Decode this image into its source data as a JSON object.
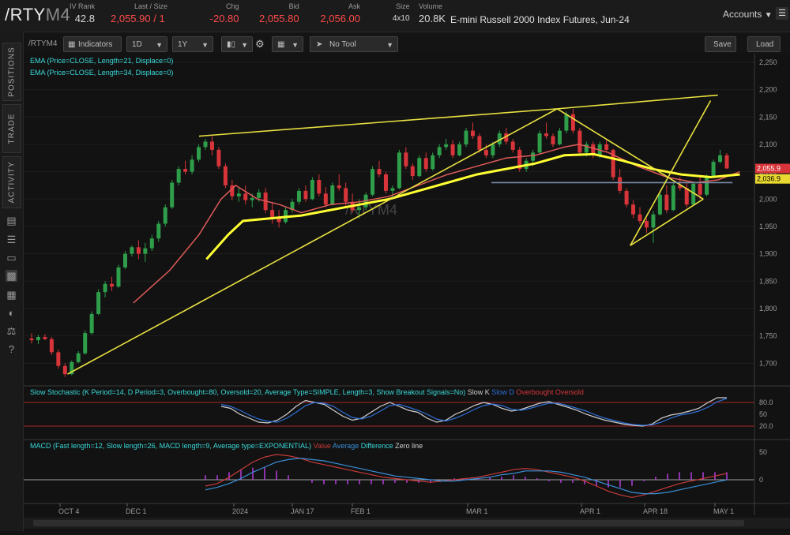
{
  "header": {
    "symbol": "/RTY",
    "symbol_suffix": "M4",
    "quotes": [
      {
        "label": "IV Rank",
        "value": "42.8",
        "color": "normal"
      },
      {
        "label": "Last / Size",
        "value": "2,055.90 / 1",
        "color": "red"
      },
      {
        "label": "Chg",
        "value": "-20.80",
        "color": "red"
      },
      {
        "label": "Bid",
        "value": "2,055.80",
        "color": "red"
      },
      {
        "label": "Ask",
        "value": "2,056.00",
        "color": "red"
      },
      {
        "label": "Size",
        "value": "4x10",
        "color": "normal"
      },
      {
        "label": "Volume",
        "value": "20.8K",
        "color": "normal"
      }
    ],
    "description": "E-mini Russell 2000 Index Futures, Jun-24",
    "accounts_label": "Accounts"
  },
  "sidebar": {
    "tabs": [
      "POSITIONS",
      "TRADE",
      "ACTIVITY"
    ],
    "icons": [
      "document-icon",
      "list-icon",
      "tv-icon",
      "chart-icon",
      "grid-icon",
      "gauge-icon",
      "scale-icon",
      "help-icon"
    ]
  },
  "toolbar": {
    "symbol": "/RTYM4",
    "indicators_label": "Indicators",
    "interval": "1D",
    "range": "1Y",
    "tool": "No Tool",
    "save_label": "Save",
    "load_label": "Load"
  },
  "studies": {
    "ema1": "EMA (Price=CLOSE, Length=21, Displace=0)",
    "ema2": "EMA (Price=CLOSE, Length=34, Displace=0)",
    "stoch": "Slow Stochastic (K Period=14, D Period=3, Overbought=80, Oversold=20, Average Type=SIMPLE, Length=3, Show Breakout Signals=No)",
    "stoch_legend": [
      "Slow K",
      "Slow D",
      "Overbought",
      "Oversold"
    ],
    "macd": "MACD (Fast length=12, Slow length=26, MACD length=9, Average type=EXPONENTIAL)",
    "macd_legend": [
      "Value",
      "Average",
      "Difference",
      "Zero line"
    ]
  },
  "watermark": "/RTYM4",
  "price_axis": {
    "ticks": [
      "2,250",
      "2,200",
      "2,150",
      "2,100",
      "2,050",
      "2,000",
      "1,950",
      "1,900",
      "1,850",
      "1,800",
      "1,750",
      "1,700"
    ],
    "last_price_label": "2,055.9",
    "ema_label": "2,036.9"
  },
  "stoch_axis": {
    "ticks": [
      "80.0",
      "50",
      "20.0"
    ]
  },
  "macd_axis": {
    "ticks": [
      "50",
      "0"
    ]
  },
  "date_axis": [
    "OCT 4",
    "DEC 1",
    "2024",
    "JAN 17",
    "FEB 1",
    "MAR 1",
    "APR 1",
    "APR 18",
    "MAY 1"
  ],
  "colors": {
    "up": "#2e9e4a",
    "down": "#d8353a",
    "ema21": "#e05a5a",
    "ema34": "#ffff33",
    "trendline": "#e8e040",
    "stoch_k": "#cfcfcf",
    "stoch_d": "#2f6fd8",
    "macd_value": "#c83a3a",
    "macd_avg": "#3a8fd8",
    "macd_hist": "#b53ee0"
  },
  "chart_data": {
    "type": "candlestick",
    "ylim": [
      1660,
      2260
    ],
    "candles": [
      [
        1745,
        1755,
        1736,
        1742
      ],
      [
        1742,
        1752,
        1735,
        1748
      ],
      [
        1748,
        1753,
        1742,
        1744
      ],
      [
        1744,
        1748,
        1715,
        1720
      ],
      [
        1720,
        1725,
        1690,
        1695
      ],
      [
        1695,
        1700,
        1675,
        1680
      ],
      [
        1680,
        1705,
        1678,
        1702
      ],
      [
        1702,
        1722,
        1700,
        1718
      ],
      [
        1718,
        1760,
        1715,
        1755
      ],
      [
        1755,
        1795,
        1752,
        1790
      ],
      [
        1790,
        1835,
        1788,
        1830
      ],
      [
        1830,
        1850,
        1820,
        1845
      ],
      [
        1845,
        1858,
        1832,
        1840
      ],
      [
        1840,
        1880,
        1838,
        1875
      ],
      [
        1875,
        1905,
        1872,
        1900
      ],
      [
        1900,
        1915,
        1895,
        1912
      ],
      [
        1912,
        1925,
        1890,
        1900
      ],
      [
        1900,
        1920,
        1885,
        1910
      ],
      [
        1910,
        1935,
        1905,
        1928
      ],
      [
        1928,
        1960,
        1922,
        1955
      ],
      [
        1955,
        1990,
        1950,
        1985
      ],
      [
        1985,
        2035,
        1982,
        2030
      ],
      [
        2030,
        2060,
        2025,
        2055
      ],
      [
        2055,
        2070,
        2045,
        2050
      ],
      [
        2050,
        2080,
        2045,
        2072
      ],
      [
        2072,
        2100,
        2068,
        2095
      ],
      [
        2095,
        2110,
        2090,
        2105
      ],
      [
        2105,
        2115,
        2080,
        2090
      ],
      [
        2090,
        2095,
        2055,
        2060
      ],
      [
        2060,
        2065,
        2020,
        2025
      ],
      [
        2025,
        2035,
        1998,
        2005
      ],
      [
        2005,
        2020,
        1995,
        2010
      ],
      [
        2010,
        2025,
        1990,
        1998
      ],
      [
        1998,
        2010,
        1985,
        2002
      ],
      [
        2002,
        2018,
        1995,
        2012
      ],
      [
        2012,
        2020,
        1975,
        1980
      ],
      [
        1980,
        1995,
        1955,
        1965
      ],
      [
        1965,
        1980,
        1948,
        1958
      ],
      [
        1958,
        1985,
        1955,
        1980
      ],
      [
        1980,
        2000,
        1975,
        1995
      ],
      [
        1995,
        2020,
        1990,
        2015
      ],
      [
        2015,
        2025,
        1995,
        2000
      ],
      [
        2000,
        2040,
        1998,
        2035
      ],
      [
        2035,
        2045,
        2005,
        2010
      ],
      [
        2010,
        2022,
        1985,
        1990
      ],
      [
        1990,
        2030,
        1988,
        2025
      ],
      [
        2025,
        2045,
        2015,
        2020
      ],
      [
        2020,
        2030,
        1985,
        1995
      ],
      [
        1995,
        2010,
        1975,
        1980
      ],
      [
        1980,
        2000,
        1965,
        1985
      ],
      [
        1985,
        2012,
        1980,
        2008
      ],
      [
        2008,
        2060,
        2005,
        2055
      ],
      [
        2055,
        2070,
        2040,
        2045
      ],
      [
        2045,
        2050,
        2010,
        2015
      ],
      [
        2015,
        2025,
        2000,
        2020
      ],
      [
        2020,
        2090,
        2018,
        2085
      ],
      [
        2085,
        2095,
        2055,
        2060
      ],
      [
        2060,
        2065,
        2035,
        2042
      ],
      [
        2042,
        2080,
        2040,
        2075
      ],
      [
        2075,
        2085,
        2050,
        2055
      ],
      [
        2055,
        2085,
        2052,
        2080
      ],
      [
        2080,
        2100,
        2075,
        2095
      ],
      [
        2095,
        2110,
        2090,
        2100
      ],
      [
        2100,
        2108,
        2075,
        2080
      ],
      [
        2080,
        2105,
        2078,
        2100
      ],
      [
        2100,
        2130,
        2095,
        2125
      ],
      [
        2125,
        2140,
        2110,
        2115
      ],
      [
        2115,
        2120,
        2085,
        2090
      ],
      [
        2090,
        2100,
        2075,
        2080
      ],
      [
        2080,
        2105,
        2075,
        2100
      ],
      [
        2100,
        2125,
        2095,
        2120
      ],
      [
        2120,
        2130,
        2100,
        2105
      ],
      [
        2105,
        2110,
        2085,
        2090
      ],
      [
        2090,
        2095,
        2050,
        2055
      ],
      [
        2055,
        2075,
        2050,
        2070
      ],
      [
        2070,
        2090,
        2060,
        2085
      ],
      [
        2085,
        2125,
        2082,
        2120
      ],
      [
        2120,
        2140,
        2110,
        2115
      ],
      [
        2115,
        2120,
        2095,
        2100
      ],
      [
        2100,
        2130,
        2098,
        2125
      ],
      [
        2125,
        2160,
        2120,
        2155
      ],
      [
        2155,
        2165,
        2120,
        2125
      ],
      [
        2125,
        2130,
        2080,
        2085
      ],
      [
        2085,
        2105,
        2078,
        2100
      ],
      [
        2100,
        2105,
        2075,
        2080
      ],
      [
        2080,
        2105,
        2075,
        2100
      ],
      [
        2100,
        2110,
        2085,
        2090
      ],
      [
        2090,
        2092,
        2035,
        2040
      ],
      [
        2040,
        2055,
        2010,
        2015
      ],
      [
        2015,
        2020,
        1985,
        1990
      ],
      [
        1990,
        1998,
        1965,
        1972
      ],
      [
        1972,
        1985,
        1955,
        1960
      ],
      [
        1960,
        1965,
        1938,
        1948
      ],
      [
        1948,
        1978,
        1920,
        1972
      ],
      [
        1972,
        2012,
        1970,
        2008
      ],
      [
        2008,
        2025,
        1975,
        1980
      ],
      [
        1980,
        2030,
        1978,
        2025
      ],
      [
        2025,
        2040,
        2015,
        2020
      ],
      [
        2020,
        2030,
        1985,
        1990
      ],
      [
        1990,
        2032,
        1988,
        2028
      ],
      [
        2028,
        2040,
        2000,
        2008
      ],
      [
        2008,
        2045,
        2005,
        2042
      ],
      [
        2042,
        2072,
        2040,
        2068
      ],
      [
        2068,
        2090,
        2065,
        2080
      ],
      [
        2080,
        2084,
        2055,
        2056
      ]
    ],
    "ema21": [
      [
        0.15,
        1810
      ],
      [
        0.2,
        1870
      ],
      [
        0.24,
        1935
      ],
      [
        0.27,
        2000
      ],
      [
        0.29,
        2025
      ],
      [
        0.32,
        2000
      ],
      [
        0.35,
        1990
      ],
      [
        0.38,
        1975
      ],
      [
        0.42,
        1990
      ],
      [
        0.46,
        1995
      ],
      [
        0.5,
        2005
      ],
      [
        0.54,
        2025
      ],
      [
        0.58,
        2045
      ],
      [
        0.62,
        2060
      ],
      [
        0.66,
        2075
      ],
      [
        0.7,
        2080
      ],
      [
        0.74,
        2095
      ],
      [
        0.76,
        2100
      ],
      [
        0.8,
        2085
      ],
      [
        0.84,
        2060
      ],
      [
        0.88,
        2040
      ],
      [
        0.92,
        2030
      ],
      [
        0.95,
        2035
      ],
      [
        0.98,
        2050
      ]
    ],
    "ema34": [
      [
        0.25,
        1890
      ],
      [
        0.28,
        1935
      ],
      [
        0.3,
        1960
      ],
      [
        0.34,
        1965
      ],
      [
        0.38,
        1970
      ],
      [
        0.42,
        1980
      ],
      [
        0.46,
        1990
      ],
      [
        0.5,
        2000
      ],
      [
        0.54,
        2015
      ],
      [
        0.58,
        2030
      ],
      [
        0.62,
        2045
      ],
      [
        0.66,
        2055
      ],
      [
        0.7,
        2065
      ],
      [
        0.74,
        2080
      ],
      [
        0.78,
        2082
      ],
      [
        0.82,
        2070
      ],
      [
        0.86,
        2055
      ],
      [
        0.9,
        2045
      ],
      [
        0.94,
        2040
      ],
      [
        0.98,
        2045
      ]
    ],
    "trendlines": [
      [
        [
          0.06,
          1680
        ],
        [
          0.73,
          2165
        ]
      ],
      [
        [
          0.24,
          2115
        ],
        [
          0.73,
          2165
        ]
      ],
      [
        [
          0.73,
          2165
        ],
        [
          0.95,
          2190
        ]
      ],
      [
        [
          0.73,
          2165
        ],
        [
          0.93,
          2000
        ]
      ],
      [
        [
          0.64,
          2030
        ],
        [
          0.97,
          2030
        ]
      ],
      [
        [
          0.83,
          1915
        ],
        [
          0.93,
          2000
        ]
      ],
      [
        [
          0.83,
          1915
        ],
        [
          0.94,
          2180
        ]
      ]
    ],
    "stoch_k": [
      70,
      65,
      50,
      40,
      30,
      28,
      35,
      50,
      70,
      85,
      80,
      75,
      60,
      45,
      35,
      40,
      55,
      70,
      80,
      70,
      60,
      55,
      40,
      30,
      35,
      50,
      60,
      72,
      80,
      75,
      65,
      58,
      62,
      70,
      78,
      82,
      75,
      68,
      60,
      50,
      42,
      35,
      30,
      25,
      22,
      20,
      25,
      40,
      48,
      52,
      58,
      65,
      80,
      92,
      92
    ],
    "stoch_d": [
      75,
      70,
      60,
      48,
      38,
      32,
      30,
      40,
      55,
      72,
      80,
      78,
      70,
      55,
      42,
      38,
      45,
      58,
      72,
      75,
      68,
      60,
      50,
      38,
      33,
      40,
      50,
      62,
      72,
      76,
      72,
      63,
      60,
      65,
      72,
      78,
      78,
      72,
      65,
      58,
      48,
      40,
      34,
      28,
      24,
      22,
      23,
      30,
      40,
      48,
      52,
      58,
      68,
      82,
      90
    ],
    "macd_value": [
      -5,
      -3,
      2,
      8,
      14,
      18,
      20,
      19,
      17,
      14,
      12,
      10,
      8,
      6,
      4,
      2,
      1,
      0,
      -1,
      -2,
      -1,
      0,
      1,
      2,
      4,
      6,
      8,
      9,
      8,
      6,
      4,
      2,
      -1,
      -5,
      -9,
      -12,
      -14,
      -12,
      -9,
      -6,
      -3,
      -1,
      1,
      3,
      5
    ],
    "macd_avg": [
      -8,
      -6,
      -3,
      1,
      6,
      10,
      14,
      16,
      17,
      16,
      15,
      13,
      11,
      9,
      7,
      5,
      3,
      2,
      1,
      0,
      -1,
      -1,
      0,
      1,
      2,
      4,
      5,
      7,
      7,
      7,
      6,
      4,
      2,
      -1,
      -4,
      -7,
      -10,
      -11,
      -11,
      -10,
      -8,
      -6,
      -4,
      -2,
      0
    ]
  }
}
